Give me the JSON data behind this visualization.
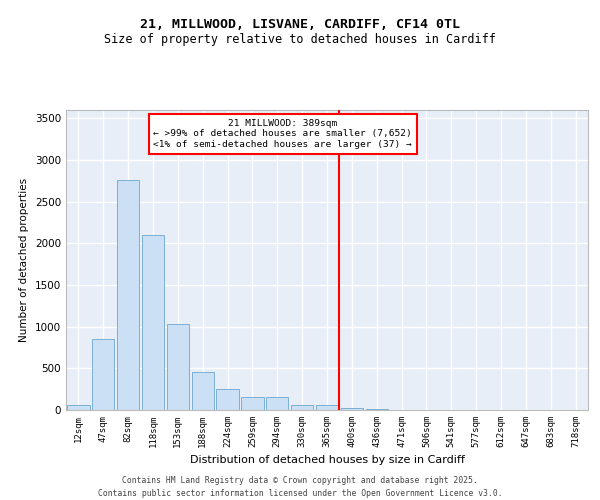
{
  "title_line1": "21, MILLWOOD, LISVANE, CARDIFF, CF14 0TL",
  "title_line2": "Size of property relative to detached houses in Cardiff",
  "xlabel": "Distribution of detached houses by size in Cardiff",
  "ylabel": "Number of detached properties",
  "bar_color": "#cce0f5",
  "bar_edge_color": "#7ab0d4",
  "background_color": "#e8eef8",
  "grid_color": "#ffffff",
  "categories": [
    "12sqm",
    "47sqm",
    "82sqm",
    "118sqm",
    "153sqm",
    "188sqm",
    "224sqm",
    "259sqm",
    "294sqm",
    "330sqm",
    "365sqm",
    "400sqm",
    "436sqm",
    "471sqm",
    "506sqm",
    "541sqm",
    "577sqm",
    "612sqm",
    "647sqm",
    "683sqm",
    "718sqm"
  ],
  "values": [
    55,
    850,
    2760,
    2100,
    1030,
    460,
    250,
    160,
    155,
    65,
    55,
    25,
    10,
    5,
    5,
    2,
    2,
    1,
    1,
    0,
    0
  ],
  "annotation_line1": "21 MILLWOOD: 389sqm",
  "annotation_line2": "← >99% of detached houses are smaller (7,652)",
  "annotation_line3": "<1% of semi-detached houses are larger (37) →",
  "vline_position": 10.5,
  "footer_line1": "Contains HM Land Registry data © Crown copyright and database right 2025.",
  "footer_line2": "Contains public sector information licensed under the Open Government Licence v3.0.",
  "ylim": [
    0,
    3600
  ],
  "yticks": [
    0,
    500,
    1000,
    1500,
    2000,
    2500,
    3000,
    3500
  ]
}
